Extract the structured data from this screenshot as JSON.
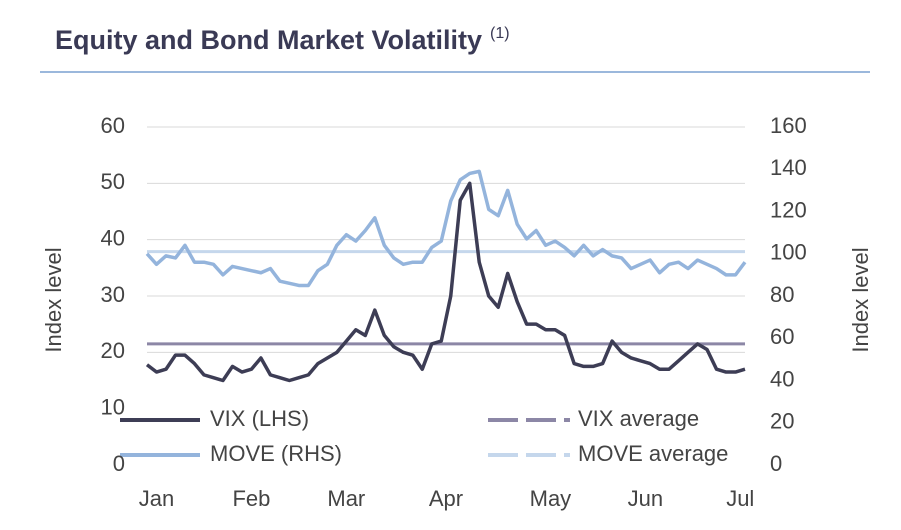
{
  "chart_data": {
    "type": "line",
    "title": "Equity and Bond Market Volatility",
    "title_note": "(1)",
    "y_label": "Index level",
    "y2_label": "Index level",
    "x": [
      0,
      2,
      4,
      6,
      8,
      10,
      12,
      14,
      16,
      18,
      20,
      22,
      24,
      26,
      28,
      30,
      32,
      34,
      36,
      38,
      40,
      42,
      44,
      46,
      48,
      50,
      52,
      54,
      56,
      58,
      60,
      62,
      64,
      66,
      68,
      70,
      72,
      74,
      76,
      78,
      80,
      82,
      84,
      86,
      88,
      90,
      92,
      94,
      96,
      98,
      100,
      102,
      104,
      106,
      108,
      110,
      112,
      114,
      116,
      118,
      120,
      122,
      124,
      126
    ],
    "xlim": [
      0,
      126
    ],
    "xticks": [
      {
        "value": 2,
        "label": "Jan"
      },
      {
        "value": 22,
        "label": "Feb"
      },
      {
        "value": 42,
        "label": "Mar"
      },
      {
        "value": 63,
        "label": "Apr"
      },
      {
        "value": 85,
        "label": "May"
      },
      {
        "value": 105,
        "label": "Jun"
      },
      {
        "value": 125,
        "label": "Jul"
      }
    ],
    "ylim": [
      0,
      60
    ],
    "yticks": [
      0,
      10,
      20,
      30,
      40,
      50,
      60
    ],
    "y2lim": [
      0,
      160
    ],
    "y2ticks": [
      0,
      20,
      40,
      60,
      80,
      100,
      120,
      140,
      160
    ],
    "grid": true,
    "series": [
      {
        "name": "VIX (LHS)",
        "color": "#3d3d55",
        "axis": "y",
        "values": [
          17.8,
          16.5,
          17,
          19.5,
          19.5,
          18,
          16,
          15.5,
          15,
          17.5,
          16.5,
          17,
          19,
          16,
          15.5,
          15,
          15.5,
          16,
          18,
          19,
          20,
          22,
          24,
          23,
          27.5,
          23,
          21,
          20,
          19.5,
          17,
          21.5,
          22,
          30,
          47,
          50,
          36,
          30,
          28,
          34,
          29,
          25,
          25,
          24,
          24,
          23,
          18,
          17.5,
          17.5,
          18,
          22,
          20,
          19,
          18.5,
          18,
          17,
          17,
          18.5,
          20,
          21.5,
          20.5,
          17,
          16.5,
          16.5,
          17
        ]
      },
      {
        "name": "MOVE (RHS)",
        "color": "#94b4dc",
        "axis": "y2",
        "values": [
          100,
          95,
          99,
          98,
          104,
          96,
          96,
          95,
          90,
          94,
          93,
          92,
          91,
          93,
          87,
          86,
          85,
          85,
          92,
          95,
          104,
          109,
          106,
          111,
          117,
          104,
          98,
          95,
          96,
          96,
          103,
          106,
          125,
          135,
          138,
          139,
          121,
          118,
          130,
          114,
          107,
          111,
          104,
          106,
          103,
          99,
          104,
          99,
          102,
          99,
          98,
          93,
          95,
          97,
          91,
          95,
          96,
          93,
          97,
          95,
          93,
          90,
          90,
          96
        ]
      }
    ],
    "reference_lines": [
      {
        "name": "VIX average",
        "color": "#8c87a6",
        "axis": "y",
        "value": 21.5
      },
      {
        "name": "MOVE average",
        "color": "#c5d7ec",
        "axis": "y2",
        "value": 101
      }
    ]
  }
}
